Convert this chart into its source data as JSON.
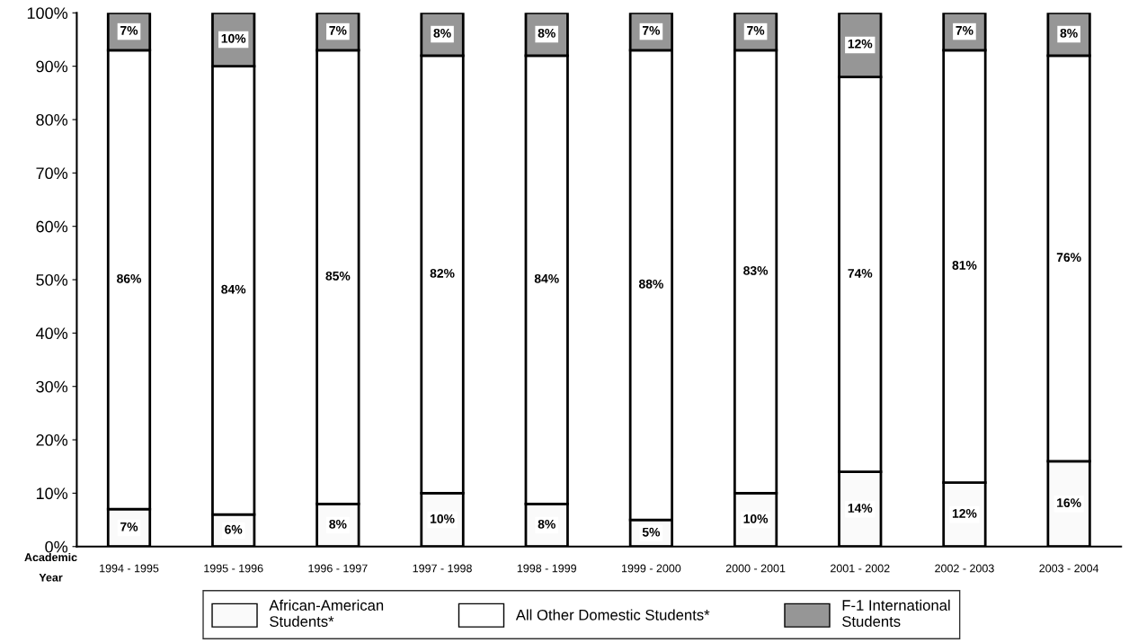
{
  "chart_data": {
    "type": "bar",
    "stacked": true,
    "xlabel": "Academic Year",
    "categories": [
      "1994 - 1995",
      "1995 - 1996",
      "1996 - 1997",
      "1997 - 1998",
      "1998 - 1999",
      "1999 - 2000",
      "2000 - 2001",
      "2001 - 2002",
      "2002 - 2003",
      "2003 - 2004"
    ],
    "series": [
      {
        "name": "African-American Students*",
        "color": "#fafafa",
        "values": [
          7,
          6,
          8,
          10,
          8,
          5,
          10,
          14,
          12,
          16
        ],
        "value_labels": [
          "7%",
          "6%",
          "8%",
          "10%",
          "8%",
          "5%",
          "10%",
          "14%",
          "12%",
          "16%"
        ]
      },
      {
        "name": "All Other Domestic Students*",
        "color": "#ffffff",
        "values": [
          86,
          84,
          85,
          82,
          84,
          88,
          83,
          74,
          81,
          76
        ],
        "value_labels": [
          "86%",
          "84%",
          "85%",
          "82%",
          "84%",
          "88%",
          "83%",
          "74%",
          "81%",
          "76%"
        ]
      },
      {
        "name": "F-1 International Students",
        "color": "#969696",
        "values": [
          7,
          10,
          7,
          8,
          8,
          7,
          7,
          12,
          7,
          8
        ],
        "value_labels": [
          "7%",
          "10%",
          "7%",
          "8%",
          "8%",
          "7%",
          "7%",
          "12%",
          "7%",
          "8%"
        ]
      }
    ],
    "ylim": [
      0,
      100
    ],
    "yticks": [
      {
        "value": 0,
        "label": "0%"
      },
      {
        "value": 10,
        "label": "10%"
      },
      {
        "value": 20,
        "label": "20%"
      },
      {
        "value": 30,
        "label": "30%"
      },
      {
        "value": 40,
        "label": "40%"
      },
      {
        "value": 50,
        "label": "50%"
      },
      {
        "value": 60,
        "label": "60%"
      },
      {
        "value": 70,
        "label": "70%"
      },
      {
        "value": 80,
        "label": "80%"
      },
      {
        "value": 90,
        "label": "90%"
      },
      {
        "value": 100,
        "label": "100%"
      }
    ],
    "grid": false,
    "legend": "bottom"
  }
}
